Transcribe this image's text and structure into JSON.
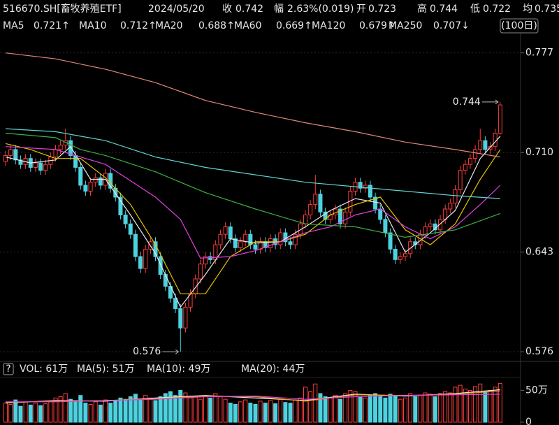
{
  "header": {
    "code": "516670.SH[畜牧养殖ETF]",
    "date": "2024/05/20",
    "fields": [
      {
        "label": "收",
        "value": "0.742",
        "color": "#ff4040"
      },
      {
        "label": "幅",
        "value": "2.63%(0.019)",
        "color": "#ff4040"
      },
      {
        "label": "开",
        "value": "0.723",
        "color": "#e8e8e8"
      },
      {
        "label": "高",
        "value": "0.744",
        "color": "#ff4040"
      },
      {
        "label": "低",
        "value": "0.722",
        "color": "#3ed03e"
      },
      {
        "label": "均",
        "value": "0.735",
        "color": "#f0a020"
      }
    ]
  },
  "chart_data": [
    {
      "type": "candlestick",
      "up_color": "#ff3d3d",
      "down_color": "#4ed2e0",
      "ylim": [
        0.57,
        0.79
      ],
      "yticks": [
        0.777,
        {
          "value": 0.71,
          "label": "0.710"
        },
        0.643,
        0.576
      ],
      "grid": true,
      "period_button": "(100日)",
      "open": [
        0.704,
        0.708,
        0.712,
        0.705,
        0.702,
        0.706,
        0.7,
        0.703,
        0.698,
        0.702,
        0.707,
        0.712,
        0.715,
        0.718,
        0.708,
        0.7,
        0.688,
        0.684,
        0.69,
        0.693,
        0.688,
        0.696,
        0.686,
        0.68,
        0.668,
        0.662,
        0.655,
        0.64,
        0.632,
        0.645,
        0.65,
        0.64,
        0.628,
        0.62,
        0.612,
        0.605,
        0.592,
        0.606,
        0.615,
        0.625,
        0.635,
        0.64,
        0.638,
        0.648,
        0.655,
        0.66,
        0.652,
        0.646,
        0.65,
        0.655,
        0.648,
        0.645,
        0.65,
        0.646,
        0.652,
        0.648,
        0.656,
        0.65,
        0.648,
        0.655,
        0.662,
        0.668,
        0.675,
        0.682,
        0.67,
        0.665,
        0.668,
        0.672,
        0.662,
        0.67,
        0.684,
        0.69,
        0.686,
        0.688,
        0.68,
        0.672,
        0.665,
        0.656,
        0.645,
        0.638,
        0.64,
        0.642,
        0.65,
        0.648,
        0.655,
        0.66,
        0.662,
        0.658,
        0.665,
        0.672,
        0.676,
        0.685,
        0.698,
        0.702,
        0.706,
        0.712,
        0.718,
        0.712,
        0.714,
        0.723
      ],
      "high": [
        0.711,
        0.715,
        0.715,
        0.708,
        0.709,
        0.709,
        0.706,
        0.706,
        0.705,
        0.71,
        0.715,
        0.718,
        0.726,
        0.721,
        0.711,
        0.703,
        0.691,
        0.693,
        0.696,
        0.696,
        0.699,
        0.699,
        0.689,
        0.683,
        0.671,
        0.665,
        0.658,
        0.643,
        0.648,
        0.653,
        0.653,
        0.643,
        0.631,
        0.623,
        0.615,
        0.608,
        0.609,
        0.618,
        0.628,
        0.638,
        0.643,
        0.643,
        0.651,
        0.658,
        0.663,
        0.663,
        0.655,
        0.653,
        0.658,
        0.658,
        0.651,
        0.653,
        0.653,
        0.655,
        0.655,
        0.659,
        0.659,
        0.653,
        0.658,
        0.665,
        0.671,
        0.678,
        0.695,
        0.685,
        0.673,
        0.671,
        0.675,
        0.675,
        0.673,
        0.687,
        0.693,
        0.693,
        0.691,
        0.691,
        0.683,
        0.675,
        0.668,
        0.659,
        0.648,
        0.643,
        0.645,
        0.653,
        0.653,
        0.658,
        0.663,
        0.665,
        0.665,
        0.668,
        0.675,
        0.679,
        0.688,
        0.701,
        0.705,
        0.709,
        0.715,
        0.726,
        0.721,
        0.717,
        0.726,
        0.744
      ],
      "low": [
        0.701,
        0.705,
        0.702,
        0.699,
        0.699,
        0.697,
        0.697,
        0.695,
        0.695,
        0.699,
        0.704,
        0.709,
        0.712,
        0.705,
        0.697,
        0.685,
        0.681,
        0.681,
        0.687,
        0.685,
        0.685,
        0.683,
        0.677,
        0.665,
        0.659,
        0.652,
        0.637,
        0.629,
        0.629,
        0.642,
        0.637,
        0.625,
        0.617,
        0.609,
        0.602,
        0.576,
        0.589,
        0.603,
        0.612,
        0.622,
        0.632,
        0.635,
        0.635,
        0.645,
        0.652,
        0.649,
        0.643,
        0.643,
        0.647,
        0.645,
        0.642,
        0.642,
        0.643,
        0.643,
        0.645,
        0.645,
        0.647,
        0.645,
        0.645,
        0.652,
        0.659,
        0.665,
        0.672,
        0.667,
        0.662,
        0.662,
        0.665,
        0.659,
        0.659,
        0.667,
        0.681,
        0.683,
        0.683,
        0.677,
        0.669,
        0.662,
        0.653,
        0.642,
        0.635,
        0.635,
        0.637,
        0.639,
        0.645,
        0.645,
        0.652,
        0.657,
        0.655,
        0.655,
        0.662,
        0.669,
        0.673,
        0.682,
        0.695,
        0.699,
        0.703,
        0.709,
        0.709,
        0.709,
        0.711,
        0.722
      ],
      "close": [
        0.708,
        0.712,
        0.705,
        0.702,
        0.706,
        0.7,
        0.703,
        0.698,
        0.702,
        0.707,
        0.712,
        0.715,
        0.718,
        0.708,
        0.7,
        0.688,
        0.684,
        0.69,
        0.693,
        0.688,
        0.696,
        0.686,
        0.68,
        0.668,
        0.662,
        0.655,
        0.64,
        0.632,
        0.645,
        0.65,
        0.64,
        0.628,
        0.62,
        0.612,
        0.605,
        0.592,
        0.606,
        0.615,
        0.625,
        0.635,
        0.64,
        0.638,
        0.648,
        0.655,
        0.66,
        0.652,
        0.646,
        0.65,
        0.655,
        0.648,
        0.645,
        0.65,
        0.646,
        0.652,
        0.648,
        0.656,
        0.65,
        0.648,
        0.655,
        0.662,
        0.668,
        0.675,
        0.682,
        0.67,
        0.665,
        0.668,
        0.672,
        0.662,
        0.67,
        0.684,
        0.69,
        0.686,
        0.688,
        0.68,
        0.672,
        0.665,
        0.656,
        0.645,
        0.638,
        0.64,
        0.642,
        0.65,
        0.648,
        0.655,
        0.66,
        0.662,
        0.658,
        0.665,
        0.672,
        0.676,
        0.685,
        0.698,
        0.702,
        0.706,
        0.712,
        0.718,
        0.712,
        0.714,
        0.723,
        0.742
      ],
      "series": [
        {
          "name": "MA5",
          "label": "0.721↑",
          "color": "#e8e8e8",
          "x": [
            0,
            5,
            10,
            13,
            17,
            20,
            25,
            30,
            35,
            40,
            45,
            50,
            55,
            60,
            65,
            70,
            75,
            80,
            85,
            90,
            95,
            99
          ],
          "values": [
            0.707,
            0.703,
            0.705,
            0.714,
            0.692,
            0.692,
            0.668,
            0.642,
            0.606,
            0.628,
            0.652,
            0.649,
            0.65,
            0.66,
            0.671,
            0.679,
            0.676,
            0.643,
            0.656,
            0.671,
            0.706,
            0.721
          ]
        },
        {
          "name": "MA10",
          "label": "0.712↑",
          "color": "#e8c300",
          "x": [
            0,
            5,
            10,
            15,
            20,
            25,
            30,
            35,
            40,
            45,
            50,
            55,
            60,
            65,
            70,
            75,
            80,
            85,
            90,
            95,
            99
          ],
          "values": [
            0.716,
            0.712,
            0.706,
            0.706,
            0.693,
            0.675,
            0.648,
            0.615,
            0.615,
            0.64,
            0.65,
            0.65,
            0.655,
            0.668,
            0.675,
            0.68,
            0.658,
            0.648,
            0.662,
            0.692,
            0.712
          ]
        },
        {
          "name": "MA20",
          "label": "0.688↑",
          "color": "#e040e0",
          "x": [
            0,
            10,
            20,
            30,
            35,
            39,
            45,
            50,
            55,
            60,
            65,
            70,
            75,
            80,
            85,
            90,
            95,
            99
          ],
          "values": [
            0.714,
            0.712,
            0.702,
            0.68,
            0.665,
            0.639,
            0.64,
            0.644,
            0.65,
            0.656,
            0.66,
            0.668,
            0.672,
            0.66,
            0.652,
            0.66,
            0.675,
            0.688
          ]
        },
        {
          "name": "MA60",
          "label": "0.669↑",
          "color": "#3cb043",
          "x": [
            0,
            10,
            15,
            20,
            30,
            40,
            50,
            60,
            70,
            80,
            90,
            99
          ],
          "values": [
            0.723,
            0.72,
            0.712,
            0.708,
            0.697,
            0.683,
            0.672,
            0.662,
            0.66,
            0.653,
            0.658,
            0.669
          ]
        },
        {
          "name": "MA120",
          "label": "0.679↑",
          "color": "#5fd3d3",
          "x": [
            0,
            10,
            20,
            30,
            40,
            50,
            60,
            70,
            80,
            90,
            99
          ],
          "values": [
            0.726,
            0.724,
            0.718,
            0.707,
            0.7,
            0.695,
            0.69,
            0.687,
            0.684,
            0.681,
            0.679
          ]
        },
        {
          "name": "MA250",
          "label": "0.707↓",
          "color": "#e08878",
          "x": [
            0,
            10,
            20,
            30,
            40,
            50,
            60,
            70,
            80,
            90,
            99
          ],
          "values": [
            0.777,
            0.773,
            0.766,
            0.757,
            0.745,
            0.737,
            0.73,
            0.724,
            0.717,
            0.712,
            0.707
          ]
        }
      ],
      "annotations": [
        {
          "text": "0.744",
          "index": 99,
          "value": 0.744,
          "color": "#ff4040"
        },
        {
          "text": "0.576",
          "index": 35,
          "value": 0.576,
          "color": "#3ed03e"
        }
      ]
    },
    {
      "type": "bar",
      "title": "VOL: 61万",
      "help_icon": "?",
      "ylim": [
        0,
        68
      ],
      "yticks": [
        0,
        {
          "value": 50,
          "label": "50万"
        }
      ],
      "values": [
        30,
        28,
        35,
        25,
        32,
        27,
        30,
        26,
        29,
        33,
        38,
        40,
        45,
        36,
        34,
        42,
        30,
        28,
        32,
        27,
        35,
        30,
        33,
        38,
        36,
        40,
        44,
        35,
        42,
        38,
        34,
        40,
        45,
        48,
        42,
        50,
        46,
        38,
        40,
        36,
        42,
        38,
        45,
        40,
        36,
        30,
        28,
        32,
        35,
        30,
        28,
        33,
        30,
        34,
        29,
        36,
        31,
        30,
        35,
        38,
        55,
        48,
        60,
        45,
        40,
        38,
        42,
        36,
        45,
        50,
        48,
        40,
        38,
        42,
        45,
        40,
        38,
        44,
        42,
        36,
        38,
        45,
        40,
        42,
        46,
        44,
        40,
        45,
        48,
        46,
        55,
        58,
        52,
        50,
        56,
        60,
        48,
        50,
        55,
        61
      ],
      "series": [
        {
          "name": "MA(5): 51万",
          "color": "#e8e8e8",
          "x": [
            0,
            10,
            20,
            30,
            40,
            50,
            60,
            70,
            80,
            90,
            99
          ],
          "values": [
            30,
            34,
            33,
            38,
            42,
            38,
            34,
            44,
            41,
            45,
            51
          ]
        },
        {
          "name": "MA(10): 49万",
          "color": "#e8a000",
          "x": [
            0,
            10,
            20,
            30,
            40,
            50,
            60,
            70,
            80,
            90,
            99
          ],
          "values": [
            31,
            33,
            34,
            37,
            41,
            40,
            33,
            43,
            42,
            44,
            49
          ]
        },
        {
          "name": "MA(20): 44万",
          "color": "#e040e0",
          "x": [
            0,
            10,
            20,
            30,
            40,
            50,
            60,
            70,
            80,
            90,
            99
          ],
          "values": [
            32,
            32,
            34,
            36,
            40,
            41,
            36,
            40,
            42,
            43,
            44
          ]
        }
      ]
    }
  ]
}
